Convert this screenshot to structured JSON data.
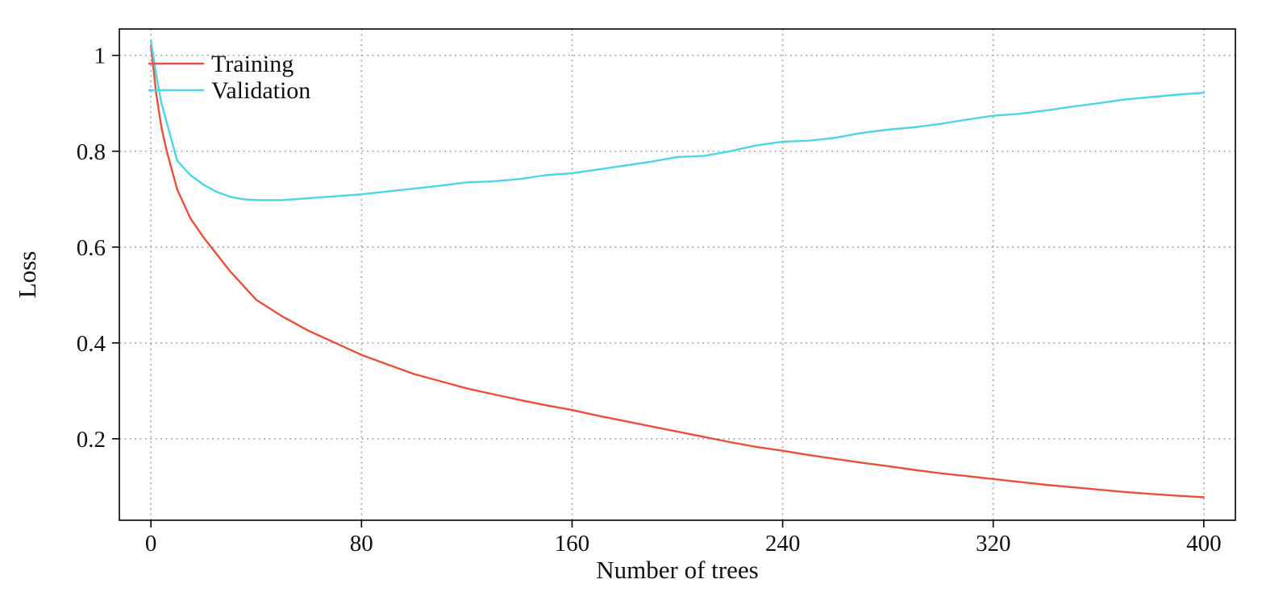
{
  "chart_data": {
    "type": "line",
    "title": "",
    "xlabel": "Number of trees",
    "ylabel": "Loss",
    "xlim": [
      -12,
      412
    ],
    "ylim": [
      0.03,
      1.055
    ],
    "x_ticks": [
      0,
      80,
      160,
      240,
      320,
      400
    ],
    "y_ticks": [
      0.2,
      0.4,
      0.6,
      0.8,
      1
    ],
    "grid": "dotted",
    "legend_position": "top-left",
    "x": [
      0,
      2,
      4,
      6,
      8,
      10,
      15,
      20,
      25,
      30,
      35,
      40,
      50,
      60,
      70,
      80,
      90,
      100,
      110,
      120,
      130,
      140,
      150,
      160,
      170,
      180,
      190,
      200,
      210,
      220,
      230,
      240,
      250,
      260,
      270,
      280,
      290,
      300,
      310,
      320,
      330,
      340,
      350,
      360,
      370,
      380,
      390,
      400
    ],
    "series": [
      {
        "name": "Training",
        "color": "#e8503c",
        "values": [
          1.02,
          0.92,
          0.85,
          0.8,
          0.76,
          0.72,
          0.66,
          0.62,
          0.585,
          0.55,
          0.52,
          0.49,
          0.455,
          0.425,
          0.4,
          0.375,
          0.355,
          0.335,
          0.32,
          0.305,
          0.293,
          0.281,
          0.27,
          0.26,
          0.248,
          0.237,
          0.226,
          0.215,
          0.204,
          0.193,
          0.183,
          0.175,
          0.166,
          0.158,
          0.15,
          0.143,
          0.135,
          0.128,
          0.122,
          0.116,
          0.11,
          0.104,
          0.099,
          0.094,
          0.089,
          0.085,
          0.081,
          0.078
        ]
      },
      {
        "name": "Validation",
        "color": "#4dd5e6",
        "values": [
          1.03,
          0.96,
          0.9,
          0.86,
          0.82,
          0.78,
          0.75,
          0.73,
          0.715,
          0.705,
          0.7,
          0.698,
          0.698,
          0.702,
          0.706,
          0.71,
          0.716,
          0.722,
          0.728,
          0.735,
          0.737,
          0.742,
          0.75,
          0.754,
          0.762,
          0.77,
          0.778,
          0.788,
          0.79,
          0.8,
          0.812,
          0.82,
          0.822,
          0.828,
          0.838,
          0.845,
          0.85,
          0.857,
          0.866,
          0.874,
          0.878,
          0.885,
          0.893,
          0.9,
          0.908,
          0.913,
          0.918,
          0.922
        ]
      }
    ],
    "colors": {
      "grid": "#9e9e9e",
      "axis": "#000000",
      "text": "#111111"
    }
  }
}
